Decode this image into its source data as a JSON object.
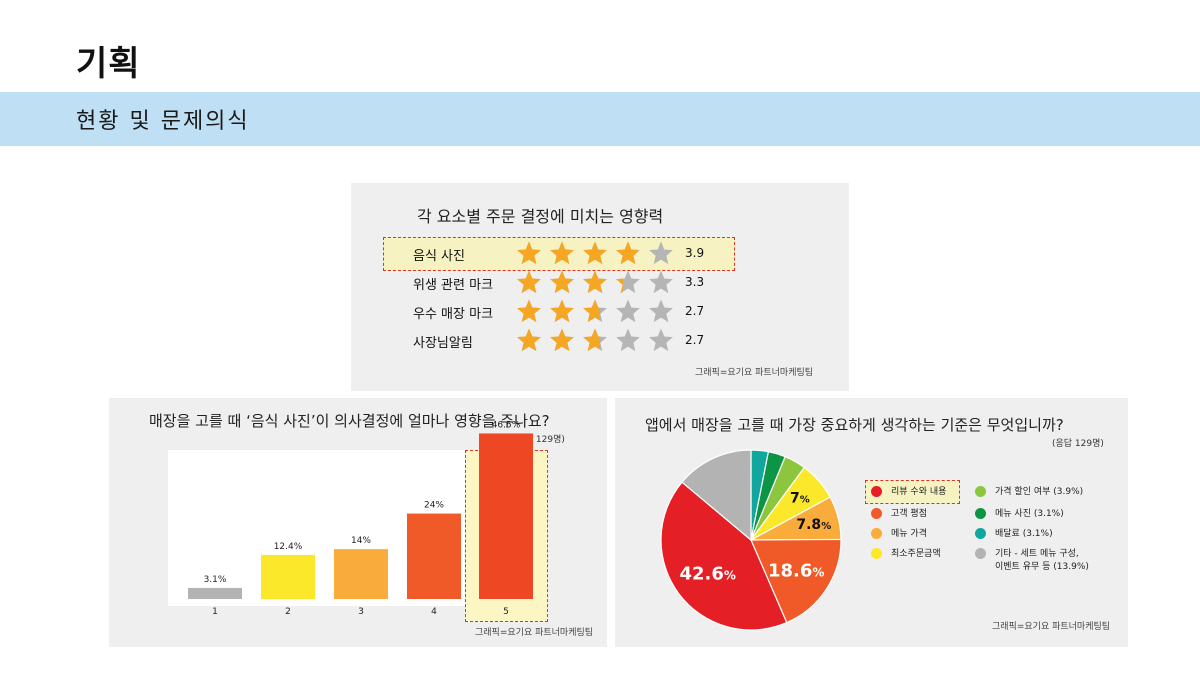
{
  "header": {
    "title": "기획",
    "subtitle": "현황 및 문제의식"
  },
  "ratings_panel": {
    "title": "각 요소별 주문 결정에 미치는 영향력",
    "credit": "그래픽=요기요 파트너마케팅팀",
    "max_stars": 5,
    "star_color": "#f5a623",
    "empty_color": "#b5b5b5",
    "items": [
      {
        "label": "음식 사진",
        "value": "3.9",
        "stars": 3.9,
        "highlighted": true
      },
      {
        "label": "위생 관련 마크",
        "value": "3.3",
        "stars": 3.3,
        "highlighted": false
      },
      {
        "label": "우수 매장 마크",
        "value": "2.7",
        "stars": 2.7,
        "highlighted": false
      },
      {
        "label": "사장님알림",
        "value": "2.7",
        "stars": 2.7,
        "highlighted": false
      }
    ]
  },
  "bar_panel": {
    "title": "매장을 고를 때 ‘음식 사진’이 의사결정에 얼마나 영향을 주나요?",
    "note": "(응답 129명)",
    "credit": "그래픽=요기요 파트너마케팅팀",
    "highlighted_category": "5"
  },
  "pie_panel": {
    "title": "앱에서 매장을 고를 때 가장 중요하게 생각하는 기준은 무엇입니까?",
    "note": "(응답 129명)",
    "credit": "그래픽=요기요 파트너마케팅팀",
    "highlighted_legend": "리뷰 수와 내용"
  },
  "chart_data": [
    {
      "type": "bar",
      "categories": [
        "1",
        "2",
        "3",
        "4",
        "5"
      ],
      "values": [
        3.1,
        12.4,
        14,
        24,
        46.5
      ],
      "labels": [
        "3.1%",
        "12.4%",
        "14%",
        "24%",
        "46.5%"
      ],
      "colors": [
        "#b3b3b3",
        "#fbe82b",
        "#f9ac3c",
        "#f05a28",
        "#ee4723"
      ],
      "ylim": [
        0,
        50
      ],
      "grid": false
    },
    {
      "type": "pie",
      "slices": [
        {
          "name": "리뷰 수와 내용",
          "value": 42.6,
          "color": "#e41f26",
          "label": "42.6",
          "unit": "%"
        },
        {
          "name": "고객 평점",
          "value": 18.6,
          "color": "#f05a28",
          "label": "18.6",
          "unit": "%"
        },
        {
          "name": "메뉴 가격",
          "value": 7.8,
          "color": "#f9ac3c",
          "label": "7.8",
          "unit": "%"
        },
        {
          "name": "최소주문금액",
          "value": 7,
          "color": "#fbe82b",
          "label": "7",
          "unit": "%"
        },
        {
          "name": "가격 할인 여부 (3.9%)",
          "value": 3.9,
          "color": "#8cc63f",
          "label": "",
          "unit": ""
        },
        {
          "name": "메뉴 사진 (3.1%)",
          "value": 3.1,
          "color": "#0d9444",
          "label": "",
          "unit": ""
        },
        {
          "name": "배달료 (3.1%)",
          "value": 3.1,
          "color": "#12a79d",
          "label": "",
          "unit": ""
        },
        {
          "name": "기타 - 세트 메뉴 구성, 이벤트 유무 등 (13.9%)",
          "value": 13.9,
          "color": "#b3b3b3",
          "label": "",
          "unit": ""
        }
      ],
      "legend": [
        [
          "리뷰 수와 내용",
          "#e41f26"
        ],
        [
          "고객 평점",
          "#f05a28"
        ],
        [
          "메뉴 가격",
          "#f9ac3c"
        ],
        [
          "최소주문금액",
          "#fbe82b"
        ],
        [
          "가격 할인 여부 (3.9%)",
          "#8cc63f"
        ],
        [
          "메뉴 사진 (3.1%)",
          "#0d9444"
        ],
        [
          "배달료 (3.1%)",
          "#12a79d"
        ],
        [
          "기타 - 세트 메뉴 구성,\n이벤트 유무 등 (13.9%)",
          "#b3b3b3"
        ]
      ],
      "legend_placement": "right"
    }
  ]
}
